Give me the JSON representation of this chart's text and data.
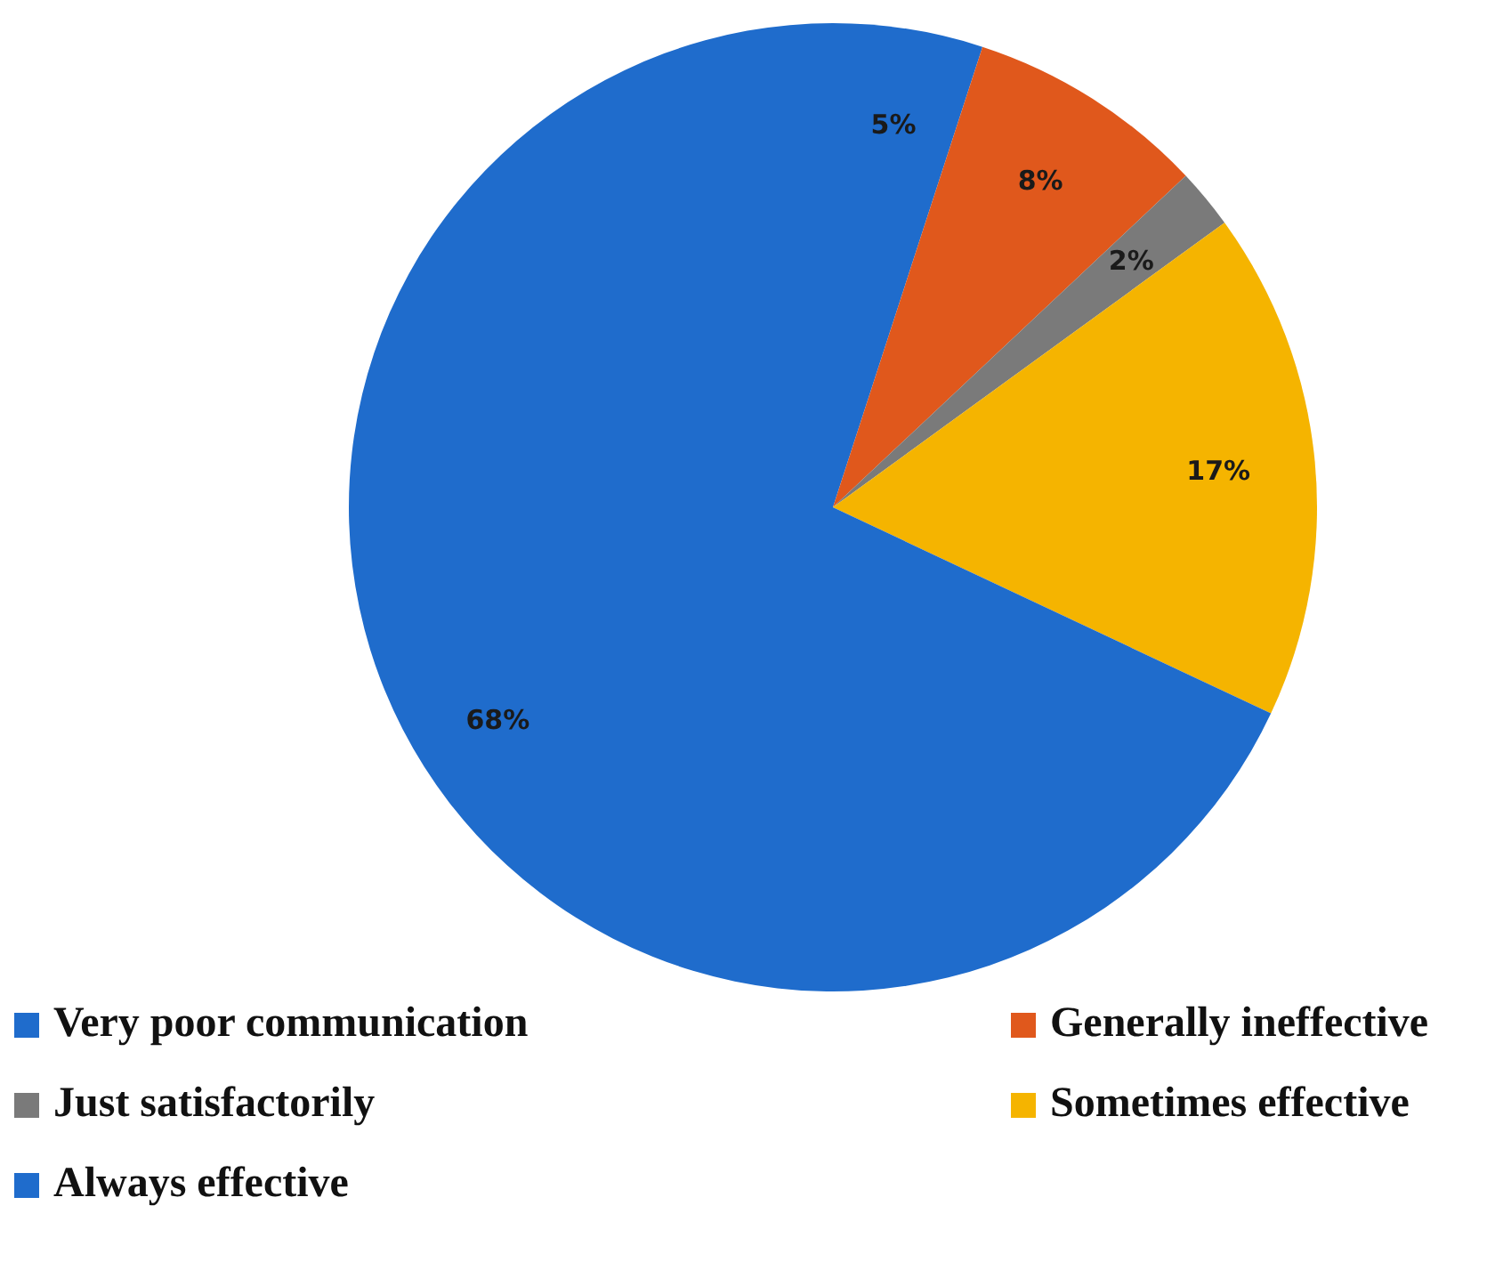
{
  "chart_data": {
    "type": "pie",
    "categories": [
      "Very poor communication",
      "Generally ineffective",
      "Just satisfactorily",
      "Sometimes effective",
      "Always effective"
    ],
    "values": [
      5,
      8,
      2,
      17,
      68
    ],
    "colors": [
      "#1f6ccc",
      "#e0581c",
      "#7a7a7a",
      "#f5b400",
      "#1f6ccc"
    ],
    "value_labels": [
      "5%",
      "8%",
      "2%",
      "17%",
      "68%"
    ],
    "legend": "bottom"
  }
}
